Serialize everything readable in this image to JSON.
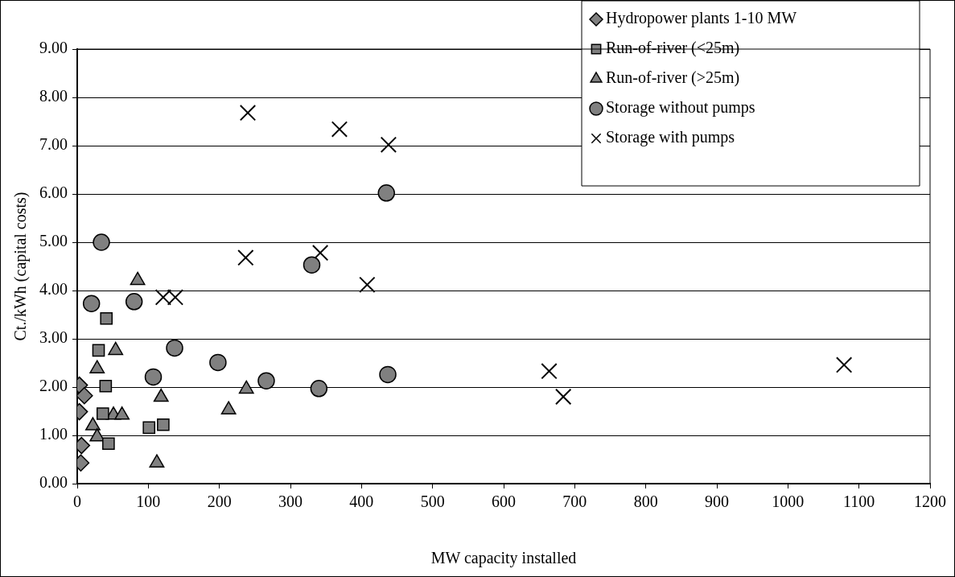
{
  "chart_data": {
    "type": "scatter",
    "xlabel": "MW capacity installed",
    "ylabel": "Ct./kWh (capital costs)",
    "xlim": [
      0,
      1200
    ],
    "xticks": [
      0,
      100,
      200,
      300,
      400,
      500,
      600,
      700,
      800,
      900,
      1000,
      1100,
      1200
    ],
    "ylim": [
      0,
      9
    ],
    "yticks": [
      {
        "value": 0,
        "label": "0.00"
      },
      {
        "value": 1,
        "label": "1.00"
      },
      {
        "value": 2,
        "label": "2.00"
      },
      {
        "value": 3,
        "label": "3.00"
      },
      {
        "value": 4,
        "label": "4.00"
      },
      {
        "value": 5,
        "label": "5.00"
      },
      {
        "value": 6,
        "label": "6.00"
      },
      {
        "value": 7,
        "label": "7.00"
      },
      {
        "value": 8,
        "label": "8.00"
      },
      {
        "value": 9,
        "label": "9.00"
      }
    ],
    "grid": "y",
    "legend": "top right",
    "series": [
      {
        "name": "Hydropower plants 1-10 MW",
        "color": "#808080",
        "marker": "diamond",
        "x": [
          3,
          10,
          3,
          6,
          5
        ],
        "values": [
          2.04,
          1.82,
          1.49,
          0.79,
          0.43
        ]
      },
      {
        "name": "Run-of-river (<25m)",
        "color": "#808080",
        "marker": "square",
        "x": [
          41,
          30,
          40,
          36,
          44,
          101,
          121
        ],
        "values": [
          3.42,
          2.76,
          2.02,
          1.45,
          0.83,
          1.16,
          1.22
        ]
      },
      {
        "name": "Run-of-river (>25m)",
        "color": "#808080",
        "marker": "triangle",
        "x": [
          85,
          54,
          28,
          118,
          51,
          63,
          22,
          28,
          112,
          238,
          213
        ],
        "values": [
          4.21,
          2.76,
          2.38,
          1.79,
          1.42,
          1.42,
          1.2,
          0.97,
          0.43,
          1.96,
          1.53
        ]
      },
      {
        "name": "Storage without pumps",
        "color": "#808080",
        "marker": "circle",
        "x": [
          34,
          20,
          80,
          137,
          107,
          198,
          266,
          330,
          340,
          435,
          437
        ],
        "values": [
          5.0,
          3.73,
          3.77,
          2.81,
          2.21,
          2.51,
          2.13,
          4.53,
          1.97,
          6.02,
          2.26
        ]
      },
      {
        "name": "Storage with pumps",
        "color": "#000000",
        "marker": "cross",
        "x": [
          240,
          369,
          438,
          237,
          342,
          408,
          121,
          138,
          664,
          684,
          1079
        ],
        "values": [
          7.68,
          7.34,
          7.02,
          4.68,
          4.78,
          4.12,
          3.86,
          3.86,
          2.33,
          1.8,
          2.46
        ]
      }
    ]
  }
}
